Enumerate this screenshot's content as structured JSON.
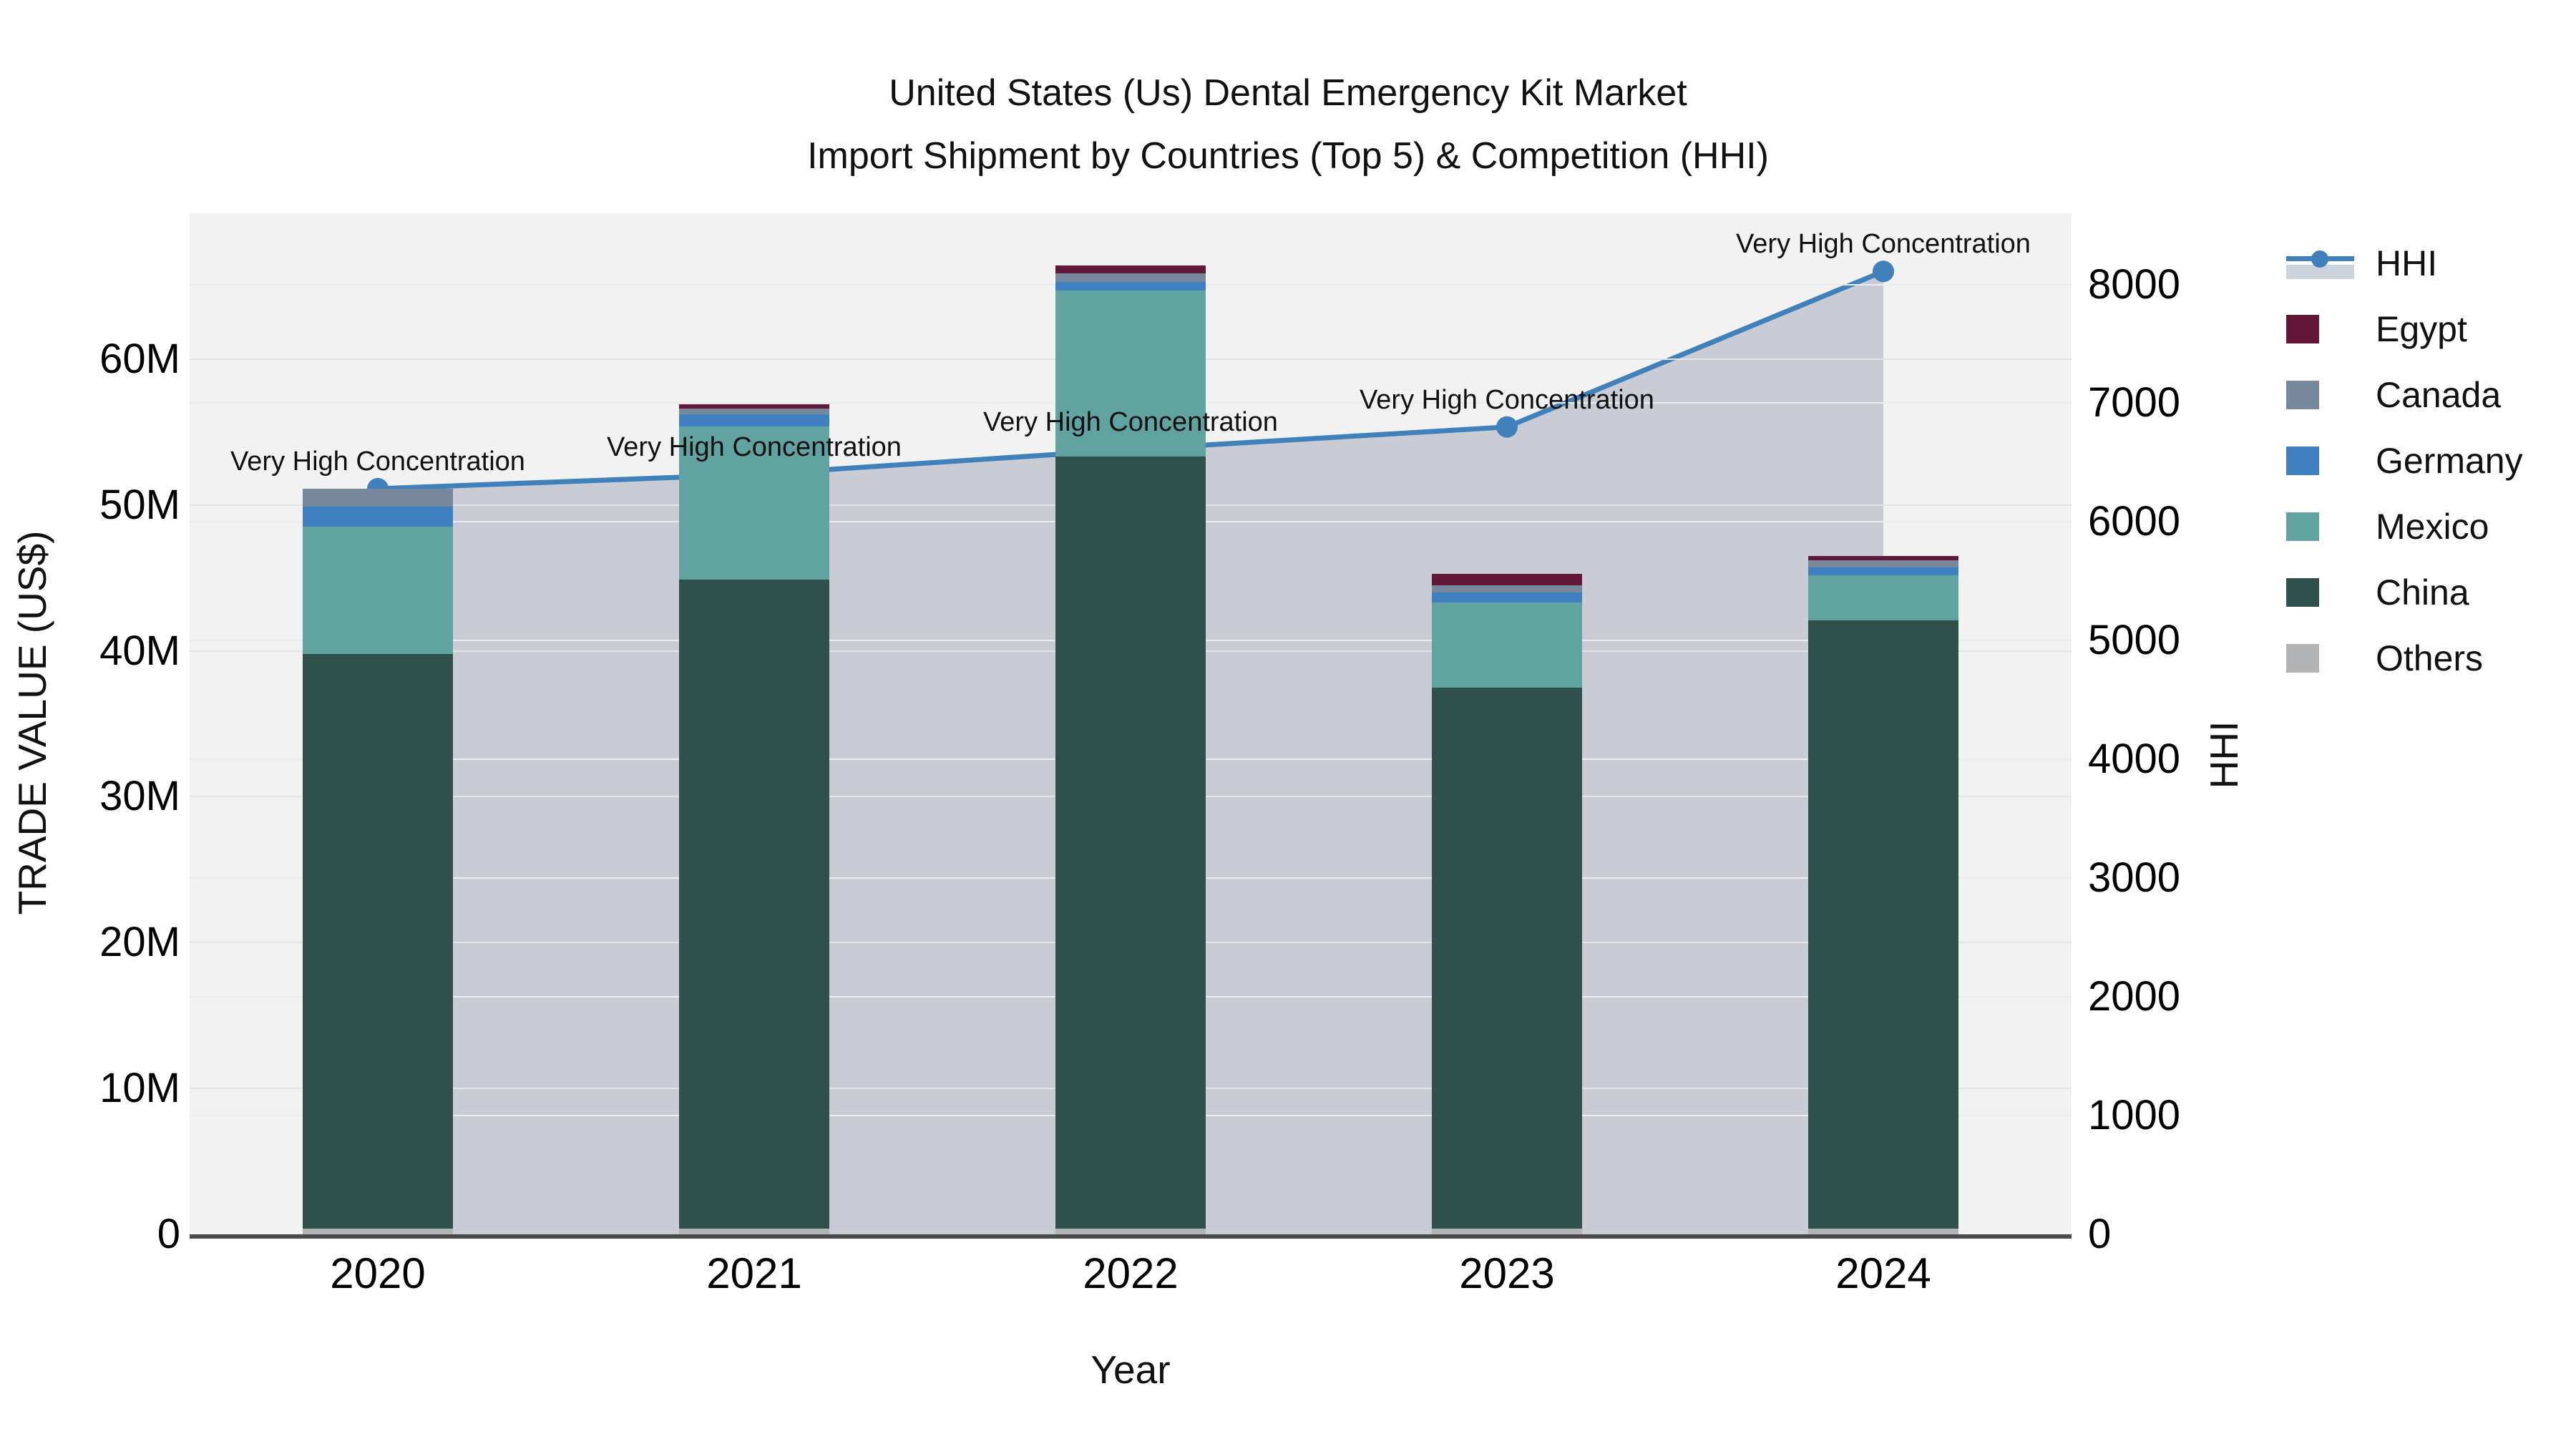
{
  "title": {
    "line1": "United States (Us) Dental Emergency Kit Market",
    "line2": "Import Shipment by Countries (Top 5) & Competition (HHI)"
  },
  "axes": {
    "left": {
      "title": "TRADE VALUE (US$)",
      "ticks": [
        {
          "label": "0",
          "value": 0
        },
        {
          "label": "10M",
          "value": 10
        },
        {
          "label": "20M",
          "value": 20
        },
        {
          "label": "30M",
          "value": 30
        },
        {
          "label": "40M",
          "value": 40
        },
        {
          "label": "50M",
          "value": 50
        },
        {
          "label": "60M",
          "value": 60
        }
      ]
    },
    "right": {
      "title": "HHI",
      "ticks": [
        {
          "label": "0",
          "value": 0
        },
        {
          "label": "1000",
          "value": 1000
        },
        {
          "label": "2000",
          "value": 2000
        },
        {
          "label": "3000",
          "value": 3000
        },
        {
          "label": "4000",
          "value": 4000
        },
        {
          "label": "5000",
          "value": 5000
        },
        {
          "label": "6000",
          "value": 6000
        },
        {
          "label": "7000",
          "value": 7000
        },
        {
          "label": "8000",
          "value": 8000
        }
      ]
    },
    "x": {
      "title": "Year",
      "ticks": [
        "2020",
        "2021",
        "2022",
        "2023",
        "2024"
      ]
    }
  },
  "legend": {
    "items": [
      {
        "label": "HHI",
        "type": "line",
        "color": "#4080bb"
      },
      {
        "label": "Egypt",
        "type": "bar",
        "color": "#641839"
      },
      {
        "label": "Canada",
        "type": "bar",
        "color": "#77889c"
      },
      {
        "label": "Germany",
        "type": "bar",
        "color": "#3e80c0"
      },
      {
        "label": "Mexico",
        "type": "bar",
        "color": "#61a3a0"
      },
      {
        "label": "China",
        "type": "bar",
        "color": "#30504c"
      },
      {
        "label": "Others",
        "type": "bar",
        "color": "#b1b3b5"
      }
    ]
  },
  "annotation_label": "Very High Concentration",
  "chart_data": {
    "type": "bar+line",
    "title": "United States (Us) Dental Emergency Kit Market Import Shipment by Countries (Top 5) & Competition (HHI)",
    "categories": [
      "2020",
      "2021",
      "2022",
      "2023",
      "2024"
    ],
    "xlabel": "Year",
    "ylabel_left": "TRADE VALUE (US$)",
    "ylabel_right": "HHI",
    "ylim_left_millions": [
      0,
      70
    ],
    "ylim_right": [
      0,
      8600
    ],
    "bar_value_unit": "million US$",
    "bar_width_fraction": 0.4,
    "grid": true,
    "legend_position": "right",
    "stack_order": "bottom to top",
    "series": [
      {
        "name": "Others",
        "color": "#b1b3b5",
        "values": [
          0.4,
          0.4,
          0.4,
          0.4,
          0.4
        ]
      },
      {
        "name": "China",
        "color": "#30504c",
        "values": [
          39.4,
          44.5,
          52.9,
          37.1,
          41.7
        ]
      },
      {
        "name": "Mexico",
        "color": "#61a3a0",
        "values": [
          8.7,
          10.5,
          11.4,
          5.8,
          3.1
        ]
      },
      {
        "name": "Germany",
        "color": "#3e80c0",
        "values": [
          1.4,
          0.8,
          0.6,
          0.7,
          0.5
        ]
      },
      {
        "name": "Canada",
        "color": "#77889c",
        "values": [
          1.2,
          0.4,
          0.6,
          0.5,
          0.5
        ]
      },
      {
        "name": "Egypt",
        "color": "#641839",
        "values": [
          0.0,
          0.3,
          0.5,
          0.8,
          0.3
        ]
      }
    ],
    "bar_totals_millions": [
      51.1,
      56.9,
      66.4,
      45.3,
      46.5
    ],
    "line": {
      "name": "HHI",
      "color": "#4080bb",
      "marker_color": "#4080bb",
      "area_fill": "rgba(125,136,160,0.35)",
      "values": [
        6280,
        6400,
        6610,
        6800,
        8110
      ],
      "point_annotations": [
        "Very High Concentration",
        "Very High Concentration",
        "Very High Concentration",
        "Very High Concentration",
        "Very High Concentration"
      ]
    }
  }
}
